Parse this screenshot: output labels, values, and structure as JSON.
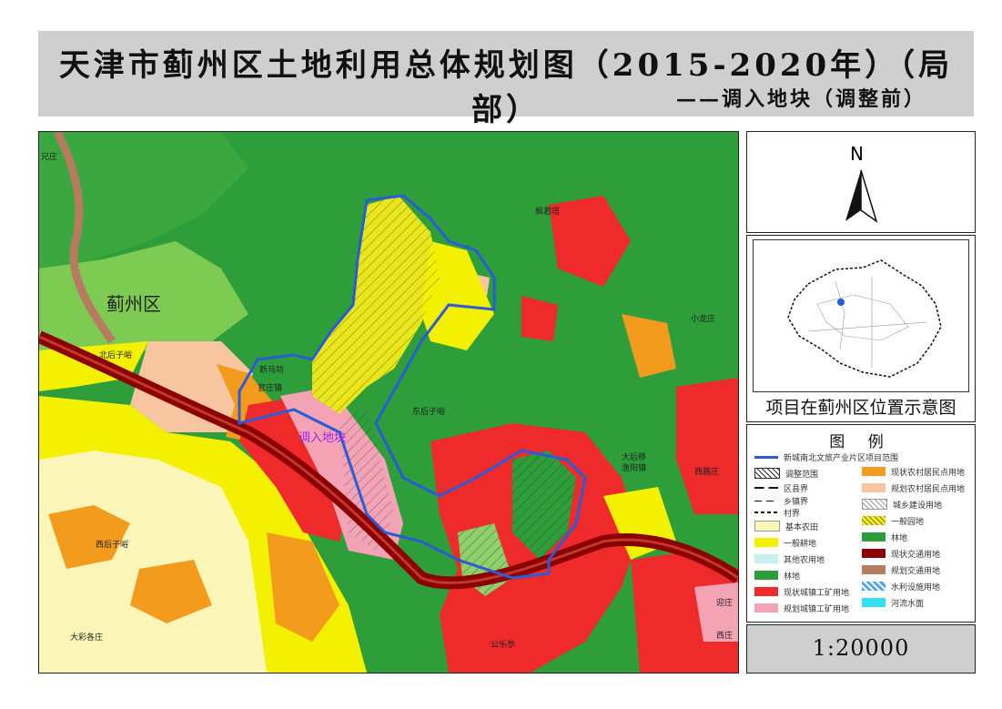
{
  "title": {
    "main": "天津市蓟州区土地利用总体规划图（2015-2020年）（局部）",
    "sub": "——调入地块（调整前）"
  },
  "map": {
    "district_label": "蓟州区",
    "adjusted_plot_label": "调入地块",
    "place_labels": {
      "top_left": "兄庄",
      "top_right_village": "枫君塔",
      "right_village": "小龙庄",
      "left_village": "北后子峪",
      "xinmachang": "新马坊",
      "xinmachang_town": "官庄镇",
      "dong_houziyu": "东后子峪",
      "xi_houziyu": "西后子峪",
      "dachaigezhuang": "大彩各庄",
      "gongleting": "公乐亭",
      "dahouzhuang": "大后移",
      "yuyang_town": "渔阳镇",
      "xizhou_zhuang": "西路庄",
      "bottom_right1": "迎庄",
      "bottom_right2": "西庄"
    }
  },
  "north_arrow": {
    "label": "N"
  },
  "location_map": {
    "caption": "项目在蓟州区位置示意图"
  },
  "legend": {
    "title": "图  例",
    "header_item": "新城南北文旅产业片区项目范围",
    "left": [
      "调整范围",
      "区县界",
      "乡镇界",
      "村界",
      "基本农田",
      "一般耕地",
      "其他农用地",
      "林地",
      "现状城镇工矿用地",
      "规划城镇工矿用地"
    ],
    "right": [
      "现状农村居民点用地",
      "规划农村居民点用地",
      "城乡建设用地",
      "一般园地",
      "林地",
      "现状交通用地",
      "规划交通用地",
      "水利设施用地",
      "河流水面"
    ]
  },
  "scale": {
    "text": "1:20000"
  },
  "colors": {
    "forest": "#2e9e3a",
    "light_green": "#6cc24a",
    "yellow": "#f3f000",
    "orange": "#f29b1d",
    "red": "#ef2a2a",
    "pink": "#f4a3b4",
    "peach": "#f7c59f",
    "pale_yellow": "#fbf6b8",
    "road": "#8b0000",
    "boundary": "#2a5cd8"
  }
}
